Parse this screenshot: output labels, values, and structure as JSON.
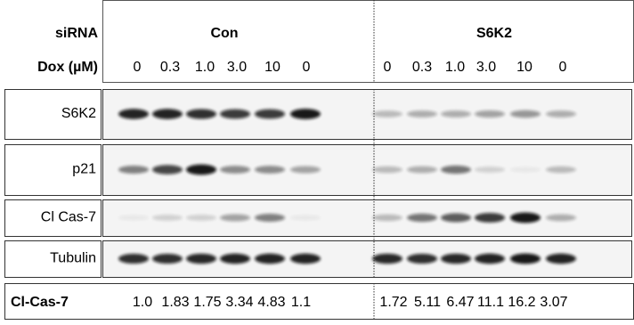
{
  "header": {
    "sirna_label": "siRNA",
    "groups": [
      "Con",
      "S6K2"
    ],
    "dox_label": "Dox (µM)",
    "dox": [
      [
        "0",
        "0.3",
        "1.0",
        "3.0",
        "10",
        "0"
      ],
      [
        "0",
        "0.3",
        "1.0",
        "3.0",
        "10",
        "0"
      ]
    ]
  },
  "blots": [
    {
      "label": "S6K2"
    },
    {
      "label": "p21"
    },
    {
      "label": "Cl Cas-7"
    },
    {
      "label": "Tubulin"
    }
  ],
  "quantification": {
    "label": "Cl-Cas-7",
    "values": [
      [
        "1.0",
        "1.83",
        "1.75",
        "3.34",
        "4.83",
        "1.1"
      ],
      [
        "1.72",
        "5.11",
        "6.47",
        "11.1",
        "16.2",
        "3.07"
      ]
    ]
  }
}
